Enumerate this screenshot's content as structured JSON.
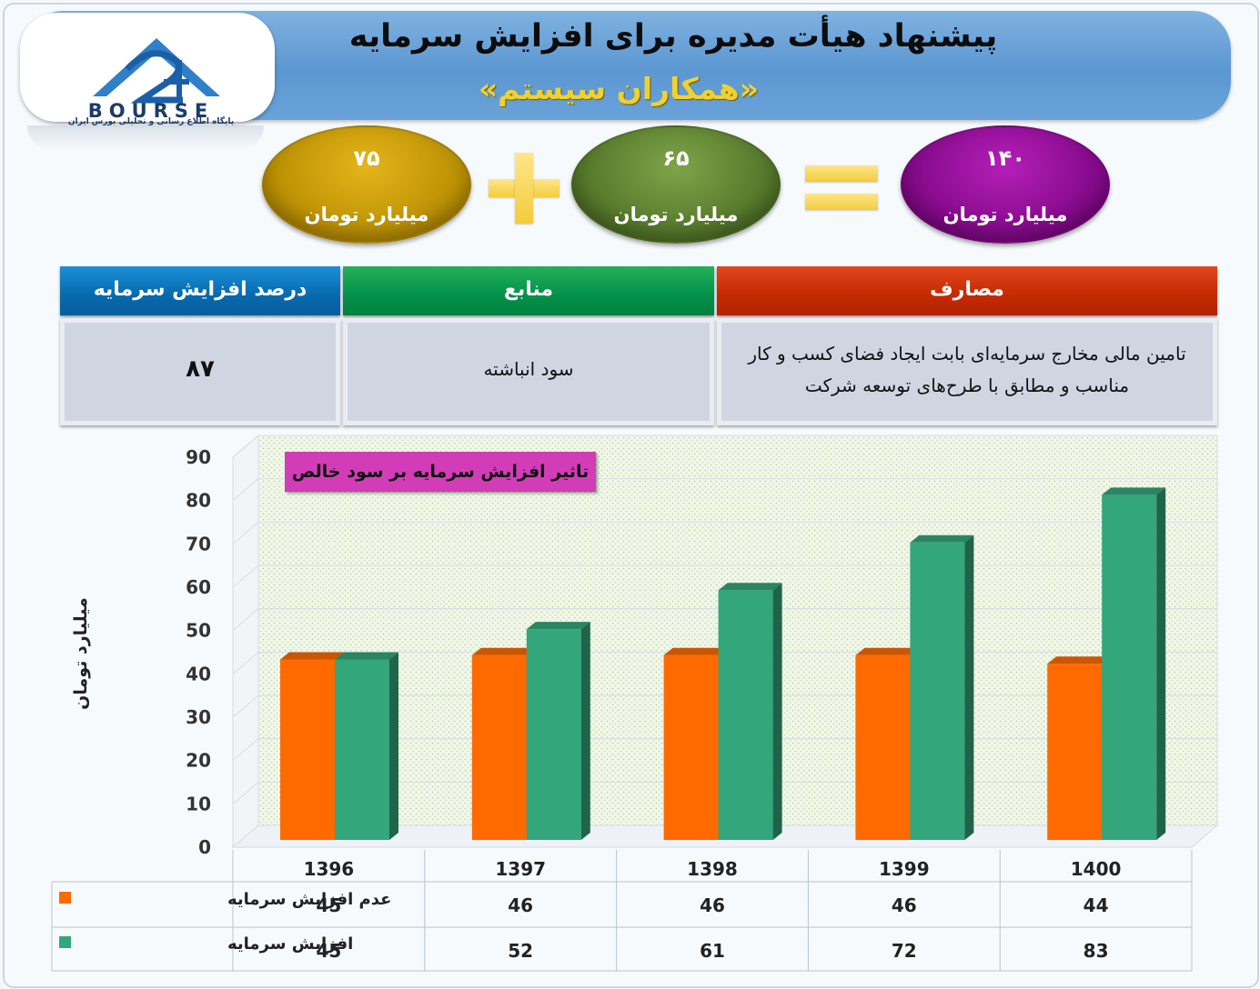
{
  "header": {
    "title": "پیشنهاد هیأت مدیره برای افزایش سرمایه",
    "subtitle": "«همکاران سیستم»"
  },
  "logo": {
    "word": "BOURSE",
    "tagline": "پایگاه اطلاع رسانی و تحلیلی بورس ایران"
  },
  "equation": {
    "left_value": "۷۵",
    "middle_value": "۶۵",
    "result_value": "۱۴۰",
    "unit": "میلیارد تومان",
    "left_color": "#c79b00",
    "middle_color": "#5f8535",
    "result_color": "#9a0d9e"
  },
  "info_table": {
    "headers": {
      "expenses": "مصارف",
      "sources": "منابع",
      "percent": "درصد افزایش سرمایه"
    },
    "values": {
      "expenses_line1": "تامین مالی مخارج سرمایه‌ای بابت ایجاد فضای کسب و کار",
      "expenses_line2": "مناسب و مطابق با طرح‌های توسعه شرکت",
      "sources": "سود انباشته",
      "percent": "۸۷"
    }
  },
  "chart_data": {
    "type": "bar",
    "title": "تاثیر افزایش سرمایه بر سود خالص",
    "ylabel": "میلیارد تومان",
    "xlabel": "",
    "ylim": [
      0,
      90
    ],
    "yticks": [
      0,
      10,
      20,
      30,
      40,
      50,
      60,
      70,
      80,
      90
    ],
    "categories": [
      "1396",
      "1397",
      "1398",
      "1399",
      "1400"
    ],
    "series": [
      {
        "name": "عدم افزایش سرمایه",
        "values": [
          45,
          46,
          46,
          46,
          44
        ],
        "color": "#ff6a00"
      },
      {
        "name": "افزایش سرمایه",
        "values": [
          45,
          52,
          61,
          72,
          83
        ],
        "color": "#33a67b"
      }
    ],
    "grid": true,
    "legend": "data-table-below"
  }
}
